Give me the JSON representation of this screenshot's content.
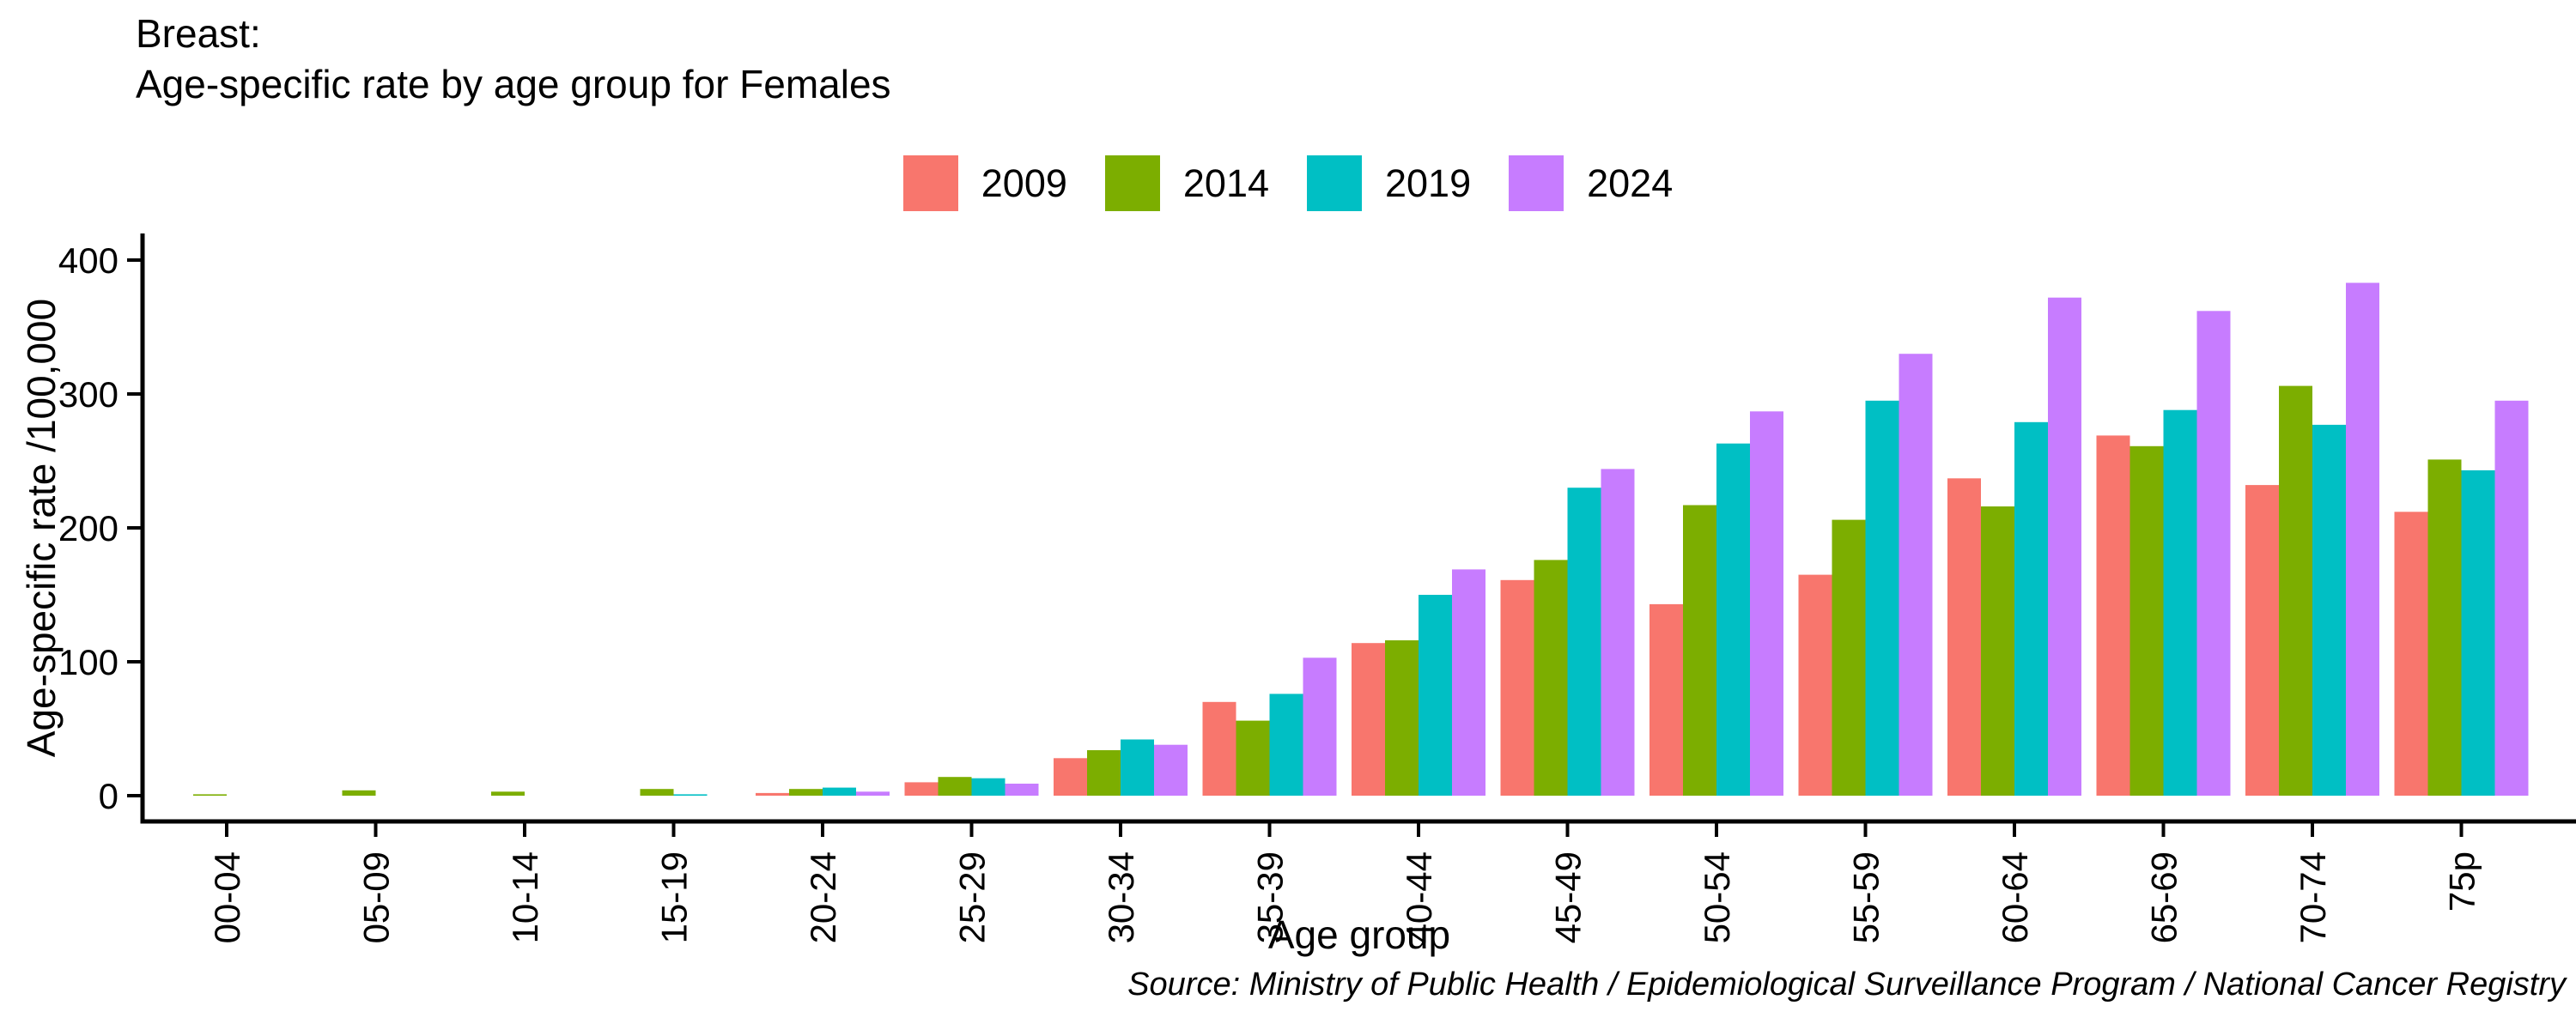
{
  "title": {
    "line1": "Breast:",
    "line2": "Age-specific rate by age group for Females"
  },
  "legend": {
    "items": [
      {
        "label": "2009",
        "color": "#F8766D"
      },
      {
        "label": "2014",
        "color": "#7CAE00"
      },
      {
        "label": "2019",
        "color": "#00BFC4"
      },
      {
        "label": "2024",
        "color": "#C77CFF"
      }
    ]
  },
  "axes": {
    "y_title": "Age-specific rate /100,000",
    "x_title": "Age group",
    "y_ticks": [
      0,
      100,
      200,
      300,
      400
    ]
  },
  "source": "Source: Ministry of Public Health / Epidemiological Surveillance Program / National Cancer Registry",
  "colors": {
    "axis": "#000000",
    "text": "#000000",
    "background": "#ffffff"
  },
  "chart_data": {
    "type": "bar",
    "title": "Breast: Age-specific rate by age group for Females",
    "xlabel": "Age group",
    "ylabel": "Age-specific rate /100,000",
    "ylim": [
      0,
      400
    ],
    "grid": false,
    "legend_position": "top",
    "categories": [
      "00-04",
      "05-09",
      "10-14",
      "15-19",
      "20-24",
      "25-29",
      "30-34",
      "35-39",
      "40-44",
      "45-49",
      "50-54",
      "55-59",
      "60-64",
      "65-69",
      "70-74",
      "75p"
    ],
    "series": [
      {
        "name": "2009",
        "color": "#F8766D",
        "values": [
          0,
          0,
          0,
          0,
          2,
          10,
          28,
          70,
          114,
          161,
          143,
          165,
          237,
          269,
          232,
          212
        ]
      },
      {
        "name": "2014",
        "color": "#7CAE00",
        "values": [
          1,
          4,
          3,
          5,
          5,
          14,
          34,
          56,
          116,
          176,
          217,
          206,
          216,
          261,
          306,
          251
        ]
      },
      {
        "name": "2019",
        "color": "#00BFC4",
        "values": [
          0,
          0,
          0,
          1,
          6,
          13,
          42,
          76,
          150,
          230,
          263,
          295,
          279,
          288,
          277,
          243
        ]
      },
      {
        "name": "2024",
        "color": "#C77CFF",
        "values": [
          0,
          0,
          0,
          0,
          3,
          9,
          38,
          103,
          169,
          244,
          287,
          330,
          372,
          362,
          383,
          295
        ]
      }
    ]
  }
}
